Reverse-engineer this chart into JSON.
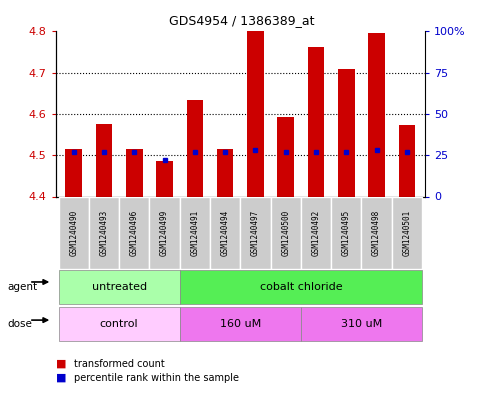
{
  "title": "GDS4954 / 1386389_at",
  "samples": [
    "GSM1240490",
    "GSM1240493",
    "GSM1240496",
    "GSM1240499",
    "GSM1240491",
    "GSM1240494",
    "GSM1240497",
    "GSM1240500",
    "GSM1240492",
    "GSM1240495",
    "GSM1240498",
    "GSM1240501"
  ],
  "transformed_count": [
    4.515,
    4.575,
    4.515,
    4.487,
    4.635,
    4.515,
    4.8,
    4.592,
    4.762,
    4.71,
    4.797,
    4.574
  ],
  "percentile_rank": [
    27,
    27,
    27,
    22,
    27,
    27,
    28,
    27,
    27,
    27,
    28,
    27
  ],
  "bar_bottom": 4.4,
  "ylim_left": [
    4.4,
    4.8
  ],
  "ylim_right": [
    0,
    100
  ],
  "yticks_left": [
    4.4,
    4.5,
    4.6,
    4.7,
    4.8
  ],
  "yticks_right": [
    0,
    25,
    50,
    75,
    100
  ],
  "ytick_labels_right": [
    "0",
    "25",
    "50",
    "75",
    "100%"
  ],
  "agent_groups": [
    {
      "label": "untreated",
      "start": 0,
      "end": 4,
      "color": "#aaffaa"
    },
    {
      "label": "cobalt chloride",
      "start": 4,
      "end": 12,
      "color": "#55ee55"
    }
  ],
  "dose_groups": [
    {
      "label": "control",
      "start": 0,
      "end": 4,
      "color": "#ffccff"
    },
    {
      "label": "160 uM",
      "start": 4,
      "end": 8,
      "color": "#ee77ee"
    },
    {
      "label": "310 uM",
      "start": 8,
      "end": 12,
      "color": "#ee77ee"
    }
  ],
  "bar_color": "#cc0000",
  "dot_color": "#0000cc",
  "sample_box_color": "#cccccc",
  "bg_color": "#ffffff",
  "left_tick_color": "#cc0000",
  "right_tick_color": "#0000cc"
}
